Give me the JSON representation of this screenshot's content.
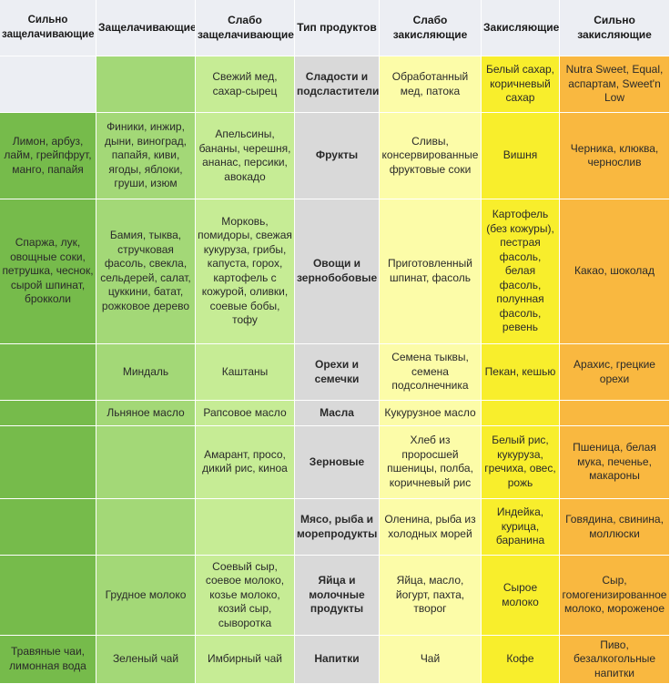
{
  "columns": [
    "Сильно защелачивающие",
    "Защелачивающие",
    "Слабо защелачивающие",
    "Тип продуктов",
    "Слабо закисляющие",
    "Закисляющие",
    "Сильно закисляющие"
  ],
  "rows": [
    [
      "",
      "",
      "Свежий мед, сахар-сырец",
      "Сладости и подсластители",
      "Обработанный мед, патока",
      "Белый сахар, коричневый сахар",
      "Nutra Sweet, Equal, аспартам, Sweet'n Low"
    ],
    [
      "Лимон, арбуз, лайм, грейпфрут, манго, папайя",
      "Финики, инжир, дыни, виноград, папайя, киви, ягоды, яблоки, груши, изюм",
      "Апельсины, бананы, черешня, ананас, персики, авокадо",
      "Фрукты",
      "Сливы, консервированные фруктовые соки",
      "Вишня",
      "Черника, клюква, чернослив"
    ],
    [
      "Спаржа, лук, овощные соки, петрушка, чеснок, сырой шпинат, брокколи",
      "Бамия, тыква, стручковая фасоль, свекла, сельдерей, салат, цуккини, батат, рожковое дерево",
      "Морковь, помидоры, свежая кукуруза, грибы, капуста, горох, картофель с кожурой, оливки, соевые бобы, тофу",
      "Овощи и зернобобовые",
      "Приготовленный шпинат, фасоль",
      "Картофель (без кожуры), пестрая фасоль, белая фасоль, полунная фасоль, ревень",
      "Какао, шоколад"
    ],
    [
      "",
      "Миндаль",
      "Каштаны",
      "Орехи и семечки",
      "Семена тыквы, семена подсолнечника",
      "Пекан, кешью",
      "Арахис, грецкие орехи"
    ],
    [
      "",
      "Льняное масло",
      "Рапсовое масло",
      "Масла",
      "Кукурузное масло",
      "",
      ""
    ],
    [
      "",
      "",
      "Амарант, просо, дикий рис, киноа",
      "Зерновые",
      "Хлеб из проросшей пшеницы, полба, коричневый рис",
      "Белый рис, кукуруза, гречиха, овес, рожь",
      "Пшеница, белая мука, печенье, макароны"
    ],
    [
      "",
      "",
      "",
      "Мясо, рыба и морепродукты",
      "Оленина, рыба из холодных морей",
      "Индейка, курица, баранина",
      "Говядина, свинина, моллюски"
    ],
    [
      "",
      "Грудное молоко",
      "Соевый сыр, соевое молоко, козье молоко, козий сыр, сыворотка",
      "Яйца и молочные продукты",
      "Яйца, масло, йогурт, пахта, творог",
      "Сырое молоко",
      "Сыр, гомогенизированное молоко, мороженое"
    ],
    [
      "Травяные чаи, лимонная вода",
      "Зеленый чай",
      "Имбирный чай",
      "Напитки",
      "Чай",
      "Кофе",
      "Пиво, безалкогольные напитки"
    ]
  ],
  "colors": {
    "header_bg": "#eceef3",
    "strong_alkaline": "#76bb4b",
    "alkaline": "#a3d877",
    "weak_alkaline": "#c6ec95",
    "category": "#d9d9d9",
    "weak_acidic": "#fcfca8",
    "acidic": "#f8ee2c",
    "strong_acidic": "#f9b840"
  }
}
